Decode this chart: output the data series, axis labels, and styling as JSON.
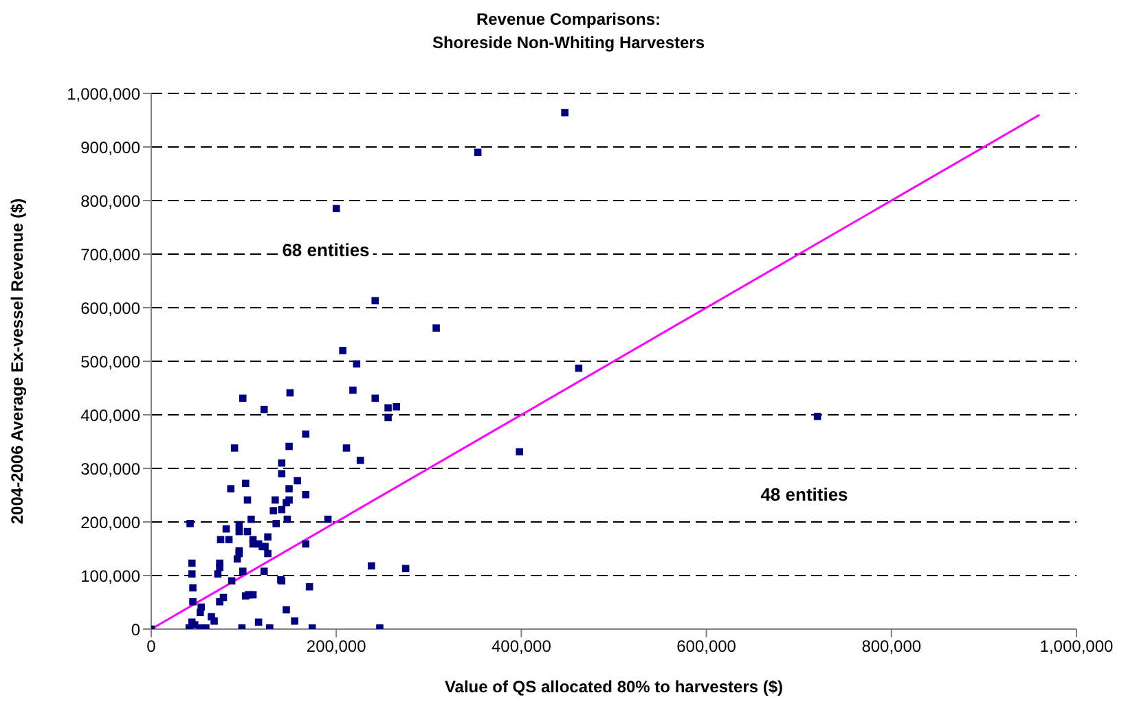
{
  "chart_data": {
    "type": "scatter",
    "title": "Revenue Comparisons:",
    "subtitle": "Shoreside Non-Whiting Harvesters",
    "xlabel": "Value of QS allocated 80% to harvesters ($)",
    "ylabel": "2004-2006 Average Ex-vessel Revenue ($)",
    "annotations": [
      "68 entities",
      "48 entities"
    ],
    "xlim": [
      0,
      1000000
    ],
    "ylim": [
      0,
      1000000
    ],
    "xticks": [
      0,
      {
        "value": 200000,
        "label": "200,000"
      },
      {
        "value": 400000,
        "label": "400,000"
      },
      {
        "value": 600000,
        "label": "600,000"
      },
      {
        "value": 800000,
        "label": "800,000"
      },
      {
        "value": 1000000,
        "label": "1,000,000"
      }
    ],
    "yticks": [
      0,
      {
        "value": 100000,
        "label": "100,000"
      },
      {
        "value": 200000,
        "label": "200,000"
      },
      {
        "value": 300000,
        "label": "300,000"
      },
      {
        "value": 400000,
        "label": "400,000"
      },
      {
        "value": 500000,
        "label": "500,000"
      },
      {
        "value": 600000,
        "label": "600,000"
      },
      {
        "value": 700000,
        "label": "700,000"
      },
      {
        "value": 800000,
        "label": "800,000"
      },
      {
        "value": 900000,
        "label": "900,000"
      },
      {
        "value": 1000000,
        "label": "1,000,000"
      }
    ],
    "grid": "y",
    "series": [
      {
        "color": "#000080",
        "marker": "square",
        "x": [
          0,
          99000,
          150000,
          122000,
          218000,
          242000,
          256000,
          265000,
          256000,
          167000,
          90000,
          149000,
          211000,
          226000,
          141000,
          141000,
          158000,
          102000,
          86000,
          149000,
          167000,
          134000,
          149000,
          146000,
          104000,
          132000,
          141000,
          42000,
          108000,
          95000,
          95000,
          147000,
          135000,
          191000,
          81000,
          104000,
          126000,
          75000,
          84000,
          110000,
          110000,
          116000,
          120000,
          123000,
          126000,
          167000,
          95000,
          95000,
          93000,
          44000,
          74000,
          74000,
          44000,
          72000,
          99000,
          122000,
          238000,
          275000,
          87000,
          140000,
          141000,
          171000,
          45000,
          45000,
          78000,
          74000,
          102000,
          105000,
          110000,
          54000,
          53000,
          65000,
          68000,
          146000,
          155000,
          116000,
          44000,
          47000,
          41000,
          53000,
          59000,
          98000,
          128000,
          174000,
          247000,
          200000,
          447000,
          353000,
          308000,
          207000,
          222000,
          242000,
          462000,
          398000,
          720000
        ],
        "values": [
          0,
          431000,
          441000,
          410000,
          446000,
          431000,
          413000,
          415000,
          395000,
          364000,
          338000,
          341000,
          338000,
          315000,
          310000,
          290000,
          277000,
          272000,
          262000,
          262000,
          251000,
          241000,
          241000,
          236000,
          241000,
          221000,
          223000,
          197000,
          205000,
          195000,
          182000,
          205000,
          197000,
          205000,
          187000,
          182000,
          172000,
          167000,
          167000,
          167000,
          159000,
          159000,
          154000,
          154000,
          141000,
          159000,
          146000,
          141000,
          131000,
          123000,
          123000,
          115000,
          103000,
          103000,
          108000,
          108000,
          118000,
          113000,
          90000,
          92000,
          90000,
          79000,
          77000,
          51000,
          59000,
          51000,
          62000,
          64000,
          64000,
          41000,
          31000,
          23000,
          15000,
          36000,
          15000,
          13000,
          13000,
          8000,
          2000,
          2000,
          2000,
          2000,
          2000,
          2000,
          2000,
          785000,
          964000,
          890000,
          562000,
          520000,
          495000,
          613000,
          487000,
          331000,
          397000
        ]
      },
      {
        "type": "line",
        "color": "#ff00ff",
        "x": [
          0,
          960000
        ],
        "values": [
          0,
          960000
        ]
      }
    ]
  }
}
